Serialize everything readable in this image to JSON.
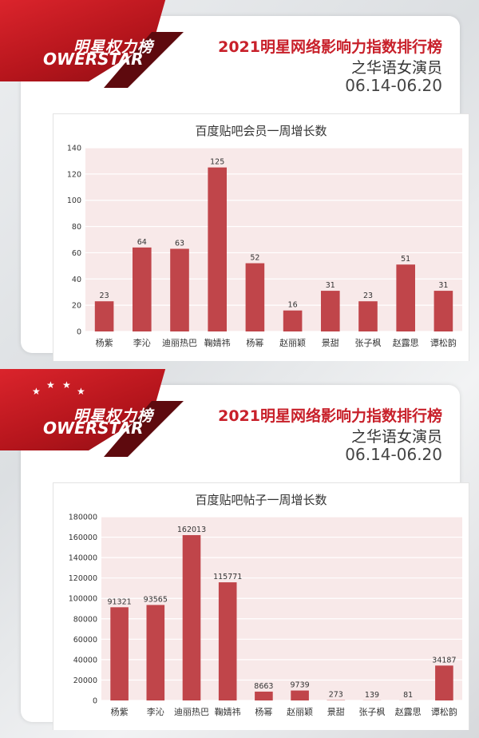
{
  "header": {
    "logo_cn": "明星权力榜",
    "logo_en": "OWERSTAR",
    "title": "2021明星网络影响力指数排行榜",
    "subtitle": "之华语女演员",
    "date_range": "06.14-06.20"
  },
  "colors": {
    "brand_red": "#c8202a",
    "bar": "#c0454a",
    "plot_bg": "#f8e9e9"
  },
  "chart_data": [
    {
      "type": "bar",
      "title": "百度贴吧会员一周增长数",
      "categories": [
        "杨紫",
        "李沁",
        "迪丽热巴",
        "鞠婧祎",
        "杨幂",
        "赵丽颖",
        "景甜",
        "张子枫",
        "赵露思",
        "谭松韵"
      ],
      "values": [
        23,
        64,
        63,
        125,
        52,
        16,
        31,
        23,
        51,
        31
      ],
      "ylim": [
        0,
        140
      ],
      "yticks": [
        0,
        20,
        40,
        60,
        80,
        100,
        120,
        140
      ],
      "grid": true
    },
    {
      "type": "bar",
      "title": "百度贴吧帖子一周增长数",
      "categories": [
        "杨紫",
        "李沁",
        "迪丽热巴",
        "鞠婧祎",
        "杨幂",
        "赵丽颖",
        "景甜",
        "张子枫",
        "赵露思",
        "谭松韵"
      ],
      "values": [
        91321,
        93565,
        162013,
        115771,
        8663,
        9739,
        273,
        139,
        81,
        34187
      ],
      "ylim": [
        0,
        180000
      ],
      "yticks": [
        0,
        20000,
        40000,
        60000,
        80000,
        100000,
        120000,
        140000,
        160000,
        180000
      ],
      "grid": true
    }
  ]
}
